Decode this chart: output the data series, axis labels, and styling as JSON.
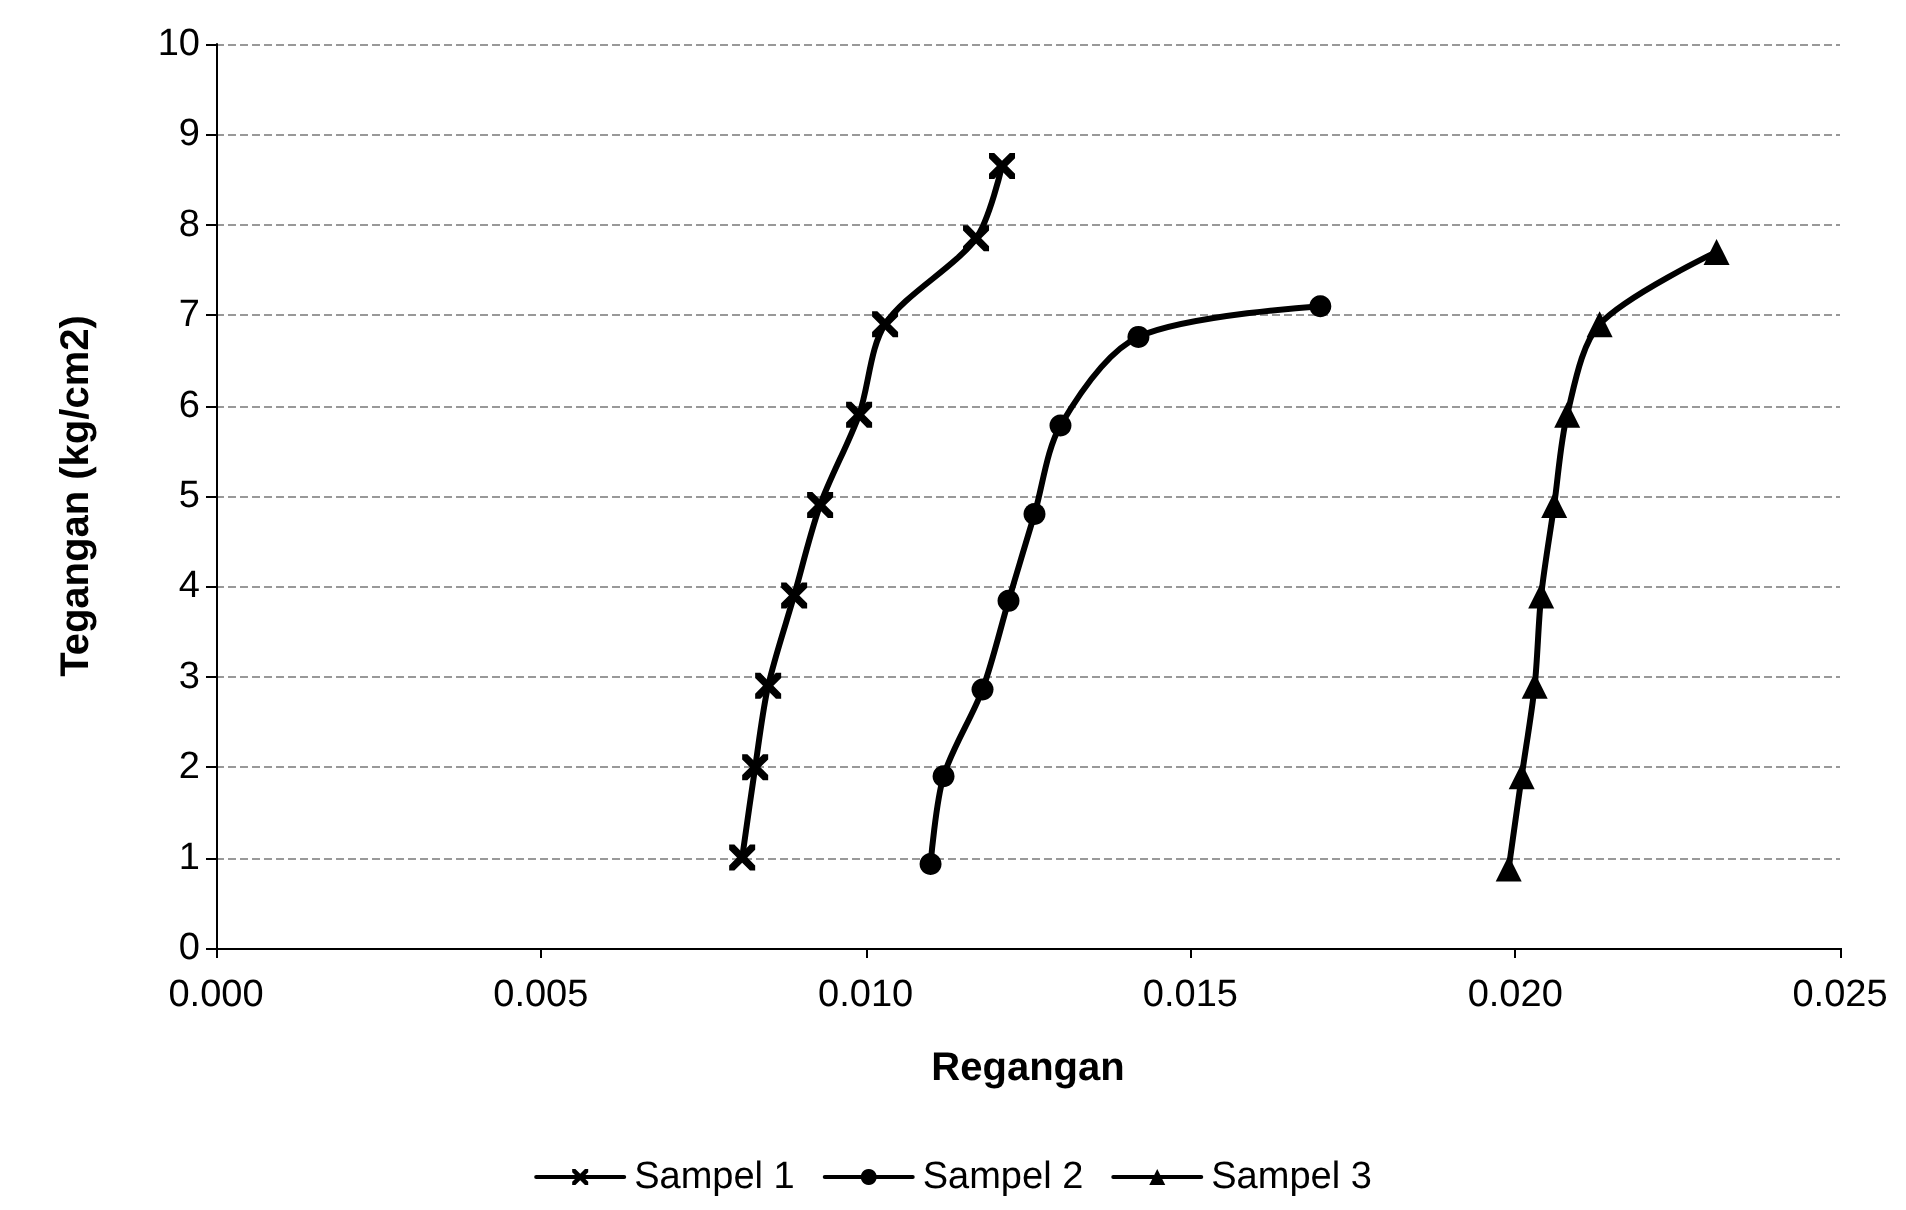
{
  "chart_data": {
    "type": "line",
    "xlabel": "Regangan",
    "ylabel": "Tegangan (kg/cm2)",
    "xlim": [
      0,
      0.025
    ],
    "xticks": [
      {
        "value": 0,
        "label": "0.000"
      },
      {
        "value": 0.005,
        "label": "0.005"
      },
      {
        "value": 0.01,
        "label": "0.010"
      },
      {
        "value": 0.015,
        "label": "0.015"
      },
      {
        "value": 0.02,
        "label": "0.020"
      },
      {
        "value": 0.025,
        "label": "0.025"
      }
    ],
    "ylim": [
      0,
      10
    ],
    "yticks": [
      0,
      1,
      2,
      3,
      4,
      5,
      6,
      7,
      8,
      9,
      10
    ],
    "grid": "y",
    "legend": "bottom",
    "line_style": "solid",
    "series": [
      {
        "name": "Sampel 1",
        "color": "#000000",
        "marker": "cross",
        "x": [
          0.0081,
          0.0083,
          0.0085,
          0.0089,
          0.0093,
          0.0099,
          0.0103,
          0.0117,
          0.0121
        ],
        "values": [
          1,
          2,
          2.9,
          3.9,
          4.9,
          5.9,
          6.9,
          7.85,
          8.65
        ]
      },
      {
        "name": "Sampel 2",
        "color": "#000000",
        "marker": "circle",
        "x": [
          0.011,
          0.0112,
          0.0118,
          0.0122,
          0.0126,
          0.013,
          0.0142,
          0.017
        ],
        "values": [
          0.93,
          1.9,
          2.86,
          3.84,
          4.8,
          5.78,
          6.76,
          7.1
        ]
      },
      {
        "name": "Sampel 3",
        "color": "#000000",
        "marker": "triangle",
        "x": [
          0.0199,
          0.0201,
          0.0203,
          0.0204,
          0.0206,
          0.0208,
          0.0213,
          0.0231
        ],
        "values": [
          0.88,
          1.9,
          2.9,
          3.9,
          4.9,
          5.9,
          6.9,
          7.7
        ]
      }
    ]
  }
}
